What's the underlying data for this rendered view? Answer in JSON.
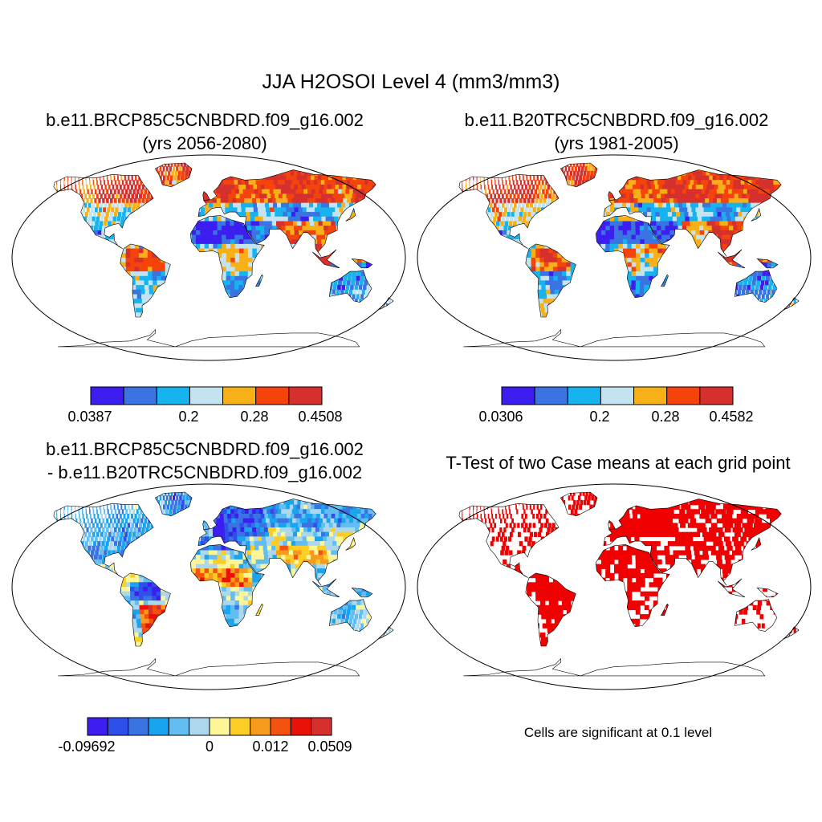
{
  "figure": {
    "title": "JJA H2OSOI Level 4 (mm3/mm3)"
  },
  "panels": [
    {
      "id": "future",
      "title_line1": "b.e11.BRCP85C5CNBDRD.f09_g16.002",
      "title_line2": "(yrs 2056-2080)",
      "colorbar": {
        "colors": [
          "#3c1ef0",
          "#3a74e3",
          "#17b3ef",
          "#c3e3f0",
          "#f8b019",
          "#f4440b",
          "#d5302d"
        ],
        "labels": [
          "0.0387",
          "0.2",
          "0.28",
          "0.4508"
        ]
      }
    },
    {
      "id": "historical",
      "title_line1": "b.e11.B20TRC5CNBDRD.f09_g16.002",
      "title_line2": "(yrs 1981-2005)",
      "colorbar": {
        "colors": [
          "#3c1ef0",
          "#3a74e3",
          "#17b3ef",
          "#c3e3f0",
          "#f8b019",
          "#f4440b",
          "#d5302d"
        ],
        "labels": [
          "0.0306",
          "0.2",
          "0.28",
          "0.4582"
        ]
      }
    },
    {
      "id": "difference",
      "title_line1": "b.e11.BRCP85C5CNBDRD.f09_g16.002",
      "title_line2": "- b.e11.B20TRC5CNBDRD.f09_g16.002",
      "colorbar": {
        "colors": [
          "#3c1ef0",
          "#2f4fea",
          "#3a74e3",
          "#1aa3ee",
          "#62bdf0",
          "#acd8ee",
          "#fdf698",
          "#fccd25",
          "#f89a1c",
          "#f4520f",
          "#ea1208",
          "#d5302d"
        ],
        "labels": [
          "-0.09692",
          "0",
          "0.012",
          "0.0509"
        ]
      }
    },
    {
      "id": "ttest",
      "title_line1": "T-Test of two Case means at each grid point",
      "note": "Cells are significant at 0.1 level"
    }
  ],
  "colors": {
    "significant": "#f00000",
    "coastline": "#000000",
    "background": "#ffffff"
  }
}
